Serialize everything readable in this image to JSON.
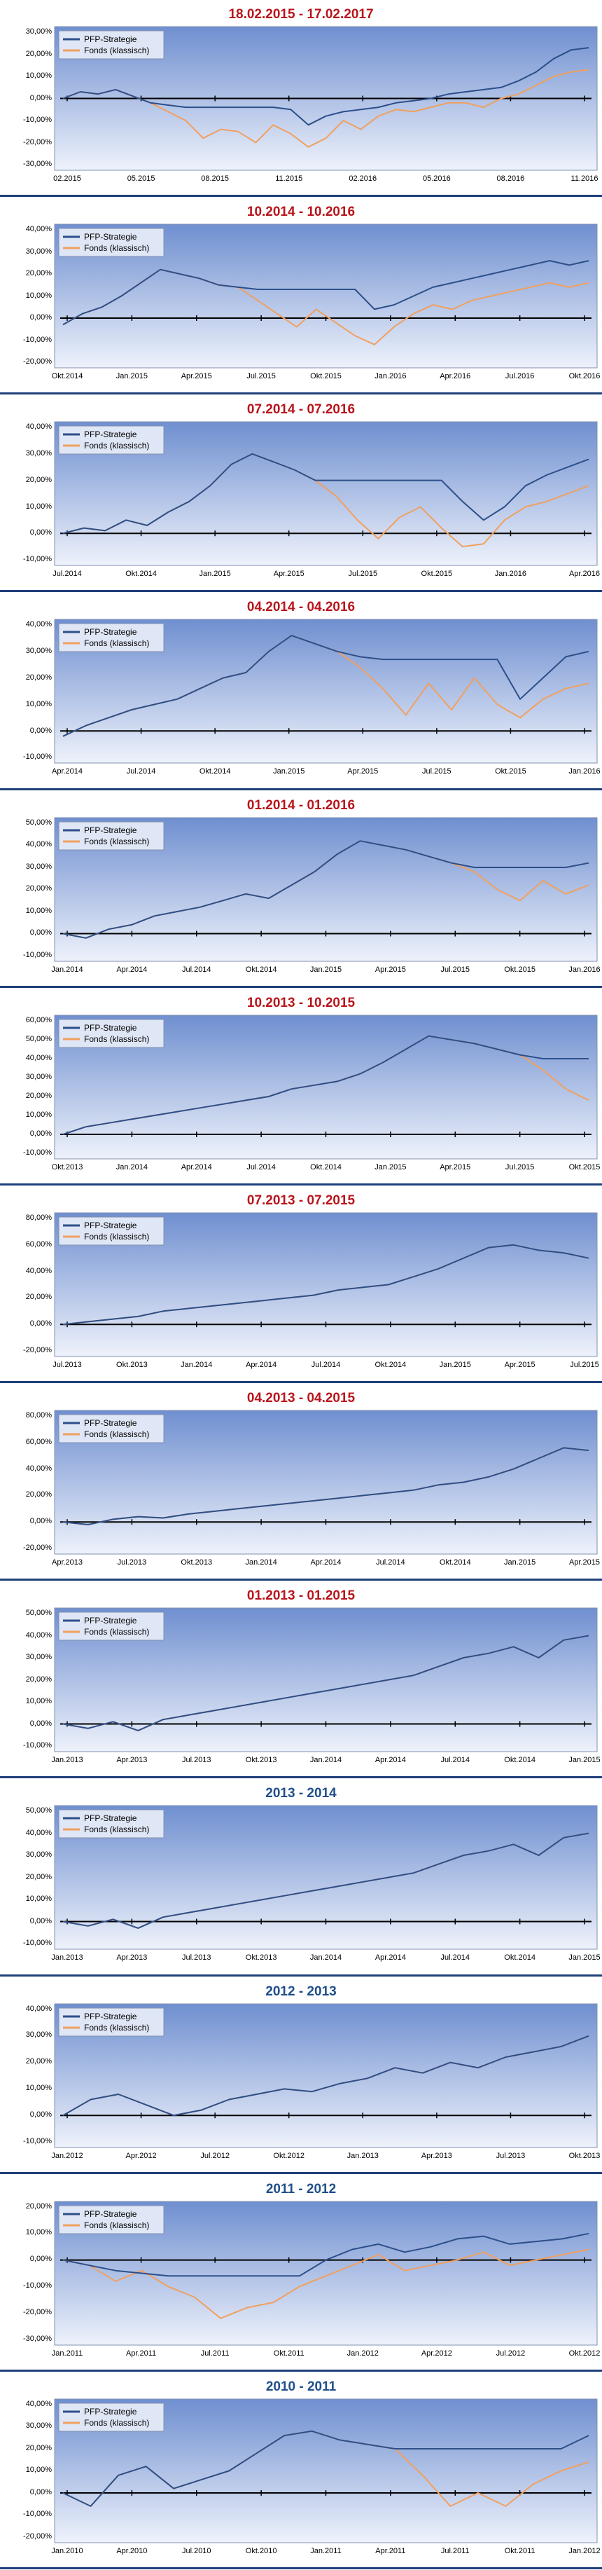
{
  "colors": {
    "strategy": "#2c4f8a",
    "fund": "#f0a060",
    "title_red": "#b8151c",
    "title_blue": "#1f4f8a"
  },
  "legend": {
    "strategy": "PFP-Strategie",
    "fund": "Fonds (klassisch)"
  },
  "chart_data": [
    {
      "type": "line",
      "title": "18.02.2015 - 17.02.2017",
      "title_color": "red",
      "ylim": [
        -30,
        30
      ],
      "yticks": [
        "30,00%",
        "20,00%",
        "10,00%",
        "0,00%",
        "-10,00%",
        "-20,00%",
        "-30,00%"
      ],
      "xticks": [
        "02.2015",
        "05.2015",
        "08.2015",
        "11.2015",
        "02.2016",
        "05.2016",
        "08.2016",
        "11.2016"
      ],
      "series": [
        {
          "name": "PFP-Strategie",
          "values": [
            0,
            3,
            2,
            4,
            1,
            -2,
            -3,
            -4,
            -4,
            -4,
            -4,
            -4,
            -4,
            -5,
            -12,
            -8,
            -6,
            -5,
            -4,
            -2,
            -1,
            0,
            2,
            3,
            4,
            5,
            8,
            12,
            18,
            22,
            23
          ]
        },
        {
          "name": "Fonds (klassisch)",
          "values": [
            0,
            3,
            2,
            4,
            1,
            -2,
            -6,
            -10,
            -18,
            -14,
            -15,
            -20,
            -12,
            -16,
            -22,
            -18,
            -10,
            -14,
            -8,
            -5,
            -6,
            -4,
            -2,
            -2,
            -4,
            0,
            2,
            6,
            10,
            12,
            13
          ]
        }
      ]
    },
    {
      "type": "line",
      "title": "10.2014 - 10.2016",
      "title_color": "red",
      "ylim": [
        -20,
        40
      ],
      "yticks": [
        "40,00%",
        "30,00%",
        "20,00%",
        "10,00%",
        "0,00%",
        "-10,00%",
        "-20,00%"
      ],
      "xticks": [
        "Okt.2014",
        "Jan.2015",
        "Apr.2015",
        "Jul.2015",
        "Okt.2015",
        "Jan.2016",
        "Apr.2016",
        "Jul.2016",
        "Okt.2016"
      ],
      "series": [
        {
          "name": "PFP-Strategie",
          "values": [
            -3,
            2,
            5,
            10,
            16,
            22,
            20,
            18,
            15,
            14,
            13,
            13,
            13,
            13,
            13,
            13,
            4,
            6,
            10,
            14,
            16,
            18,
            20,
            22,
            24,
            26,
            24,
            26
          ]
        },
        {
          "name": "Fonds (klassisch)",
          "values": [
            -3,
            2,
            5,
            10,
            16,
            22,
            20,
            18,
            15,
            14,
            8,
            2,
            -4,
            4,
            -2,
            -8,
            -12,
            -4,
            2,
            6,
            4,
            8,
            10,
            12,
            14,
            16,
            14,
            16
          ]
        }
      ]
    },
    {
      "type": "line",
      "title": "07.2014 - 07.2016",
      "title_color": "red",
      "ylim": [
        -10,
        40
      ],
      "yticks": [
        "40,00%",
        "30,00%",
        "20,00%",
        "10,00%",
        "0,00%",
        "-10,00%"
      ],
      "xticks": [
        "Jul.2014",
        "Okt.2014",
        "Jan.2015",
        "Apr.2015",
        "Jul.2015",
        "Okt.2015",
        "Jan.2016",
        "Apr.2016"
      ],
      "series": [
        {
          "name": "PFP-Strategie",
          "values": [
            0,
            2,
            1,
            5,
            3,
            8,
            12,
            18,
            26,
            30,
            27,
            24,
            20,
            20,
            20,
            20,
            20,
            20,
            20,
            12,
            5,
            10,
            18,
            22,
            25,
            28
          ]
        },
        {
          "name": "Fonds (klassisch)",
          "values": [
            0,
            2,
            1,
            5,
            3,
            8,
            12,
            18,
            26,
            30,
            27,
            24,
            20,
            14,
            5,
            -2,
            6,
            10,
            2,
            -5,
            -4,
            5,
            10,
            12,
            15,
            18
          ]
        }
      ]
    },
    {
      "type": "line",
      "title": "04.2014 - 04.2016",
      "title_color": "red",
      "ylim": [
        -10,
        40
      ],
      "yticks": [
        "40,00%",
        "30,00%",
        "20,00%",
        "10,00%",
        "0,00%",
        "-10,00%"
      ],
      "xticks": [
        "Apr.2014",
        "Jul.2014",
        "Okt.2014",
        "Jan.2015",
        "Apr.2015",
        "Jul.2015",
        "Okt.2015",
        "Jan.2016"
      ],
      "series": [
        {
          "name": "PFP-Strategie",
          "values": [
            -2,
            2,
            5,
            8,
            10,
            12,
            16,
            20,
            22,
            30,
            36,
            33,
            30,
            28,
            27,
            27,
            27,
            27,
            27,
            27,
            12,
            20,
            28,
            30
          ]
        },
        {
          "name": "Fonds (klassisch)",
          "values": [
            -2,
            2,
            5,
            8,
            10,
            12,
            16,
            20,
            22,
            30,
            36,
            33,
            30,
            24,
            16,
            6,
            18,
            8,
            20,
            10,
            5,
            12,
            16,
            18
          ]
        }
      ]
    },
    {
      "type": "line",
      "title": "01.2014 - 01.2016",
      "title_color": "red",
      "ylim": [
        -10,
        50
      ],
      "yticks": [
        "50,00%",
        "40,00%",
        "30,00%",
        "20,00%",
        "10,00%",
        "0,00%",
        "-10,00%"
      ],
      "xticks": [
        "Jan.2014",
        "Apr.2014",
        "Jul.2014",
        "Okt.2014",
        "Jan.2015",
        "Apr.2015",
        "Jul.2015",
        "Okt.2015",
        "Jan.2016"
      ],
      "series": [
        {
          "name": "PFP-Strategie",
          "values": [
            0,
            -2,
            2,
            4,
            8,
            10,
            12,
            15,
            18,
            16,
            22,
            28,
            36,
            42,
            40,
            38,
            35,
            32,
            30,
            30,
            30,
            30,
            30,
            32
          ]
        },
        {
          "name": "Fonds (klassisch)",
          "values": [
            0,
            -2,
            2,
            4,
            8,
            10,
            12,
            15,
            18,
            16,
            22,
            28,
            36,
            42,
            40,
            38,
            35,
            32,
            28,
            20,
            15,
            24,
            18,
            22
          ]
        }
      ]
    },
    {
      "type": "line",
      "title": "10.2013 - 10.2015",
      "title_color": "red",
      "ylim": [
        -10,
        60
      ],
      "yticks": [
        "60,00%",
        "50,00%",
        "40,00%",
        "30,00%",
        "20,00%",
        "10,00%",
        "0,00%",
        "-10,00%"
      ],
      "xticks": [
        "Okt.2013",
        "Jan.2014",
        "Apr.2014",
        "Jul.2014",
        "Okt.2014",
        "Jan.2015",
        "Apr.2015",
        "Jul.2015",
        "Okt.2015"
      ],
      "series": [
        {
          "name": "PFP-Strategie",
          "values": [
            0,
            4,
            6,
            8,
            10,
            12,
            14,
            16,
            18,
            20,
            24,
            26,
            28,
            32,
            38,
            45,
            52,
            50,
            48,
            45,
            42,
            40,
            40,
            40
          ]
        },
        {
          "name": "Fonds (klassisch)",
          "values": [
            0,
            4,
            6,
            8,
            10,
            12,
            14,
            16,
            18,
            20,
            24,
            26,
            28,
            32,
            38,
            45,
            52,
            50,
            48,
            45,
            42,
            34,
            24,
            18
          ]
        }
      ]
    },
    {
      "type": "line",
      "title": "07.2013 - 07.2015",
      "title_color": "red",
      "ylim": [
        -20,
        80
      ],
      "yticks": [
        "80,00%",
        "60,00%",
        "40,00%",
        "20,00%",
        "0,00%",
        "-20,00%"
      ],
      "xticks": [
        "Jul.2013",
        "Okt.2013",
        "Jan.2014",
        "Apr.2014",
        "Jul.2014",
        "Okt.2014",
        "Jan.2015",
        "Apr.2015",
        "Jul.2015"
      ],
      "series": [
        {
          "name": "PFP-Strategie",
          "values": [
            0,
            2,
            4,
            6,
            10,
            12,
            14,
            16,
            18,
            20,
            22,
            26,
            28,
            30,
            36,
            42,
            50,
            58,
            60,
            56,
            54,
            50
          ]
        },
        {
          "name": "Fonds (klassisch)",
          "values": [
            0,
            2,
            4,
            6,
            10,
            12,
            14,
            16,
            18,
            20,
            22,
            26,
            28,
            30,
            36,
            42,
            50,
            58,
            60,
            56,
            54,
            50
          ]
        }
      ]
    },
    {
      "type": "line",
      "title": "04.2013 - 04.2015",
      "title_color": "red",
      "ylim": [
        -20,
        80
      ],
      "yticks": [
        "80,00%",
        "60,00%",
        "40,00%",
        "20,00%",
        "0,00%",
        "-20,00%"
      ],
      "xticks": [
        "Apr.2013",
        "Jul.2013",
        "Okt.2013",
        "Jan.2014",
        "Apr.2014",
        "Jul.2014",
        "Okt.2014",
        "Jan.2015",
        "Apr.2015"
      ],
      "series": [
        {
          "name": "PFP-Strategie",
          "values": [
            0,
            -2,
            2,
            4,
            3,
            6,
            8,
            10,
            12,
            14,
            16,
            18,
            20,
            22,
            24,
            28,
            30,
            34,
            40,
            48,
            56,
            54
          ]
        },
        {
          "name": "Fonds (klassisch)",
          "values": [
            0,
            -2,
            2,
            4,
            3,
            6,
            8,
            10,
            12,
            14,
            16,
            18,
            20,
            22,
            24,
            28,
            30,
            34,
            40,
            48,
            56,
            54
          ]
        }
      ]
    },
    {
      "type": "line",
      "title": "01.2013 - 01.2015",
      "title_color": "red",
      "ylim": [
        -10,
        50
      ],
      "yticks": [
        "50,00%",
        "40,00%",
        "30,00%",
        "20,00%",
        "10,00%",
        "0,00%",
        "-10,00%"
      ],
      "xticks": [
        "Jan.2013",
        "Apr.2013",
        "Jul.2013",
        "Okt.2013",
        "Jan.2014",
        "Apr.2014",
        "Jul.2014",
        "Okt.2014",
        "Jan.2015"
      ],
      "series": [
        {
          "name": "PFP-Strategie",
          "values": [
            0,
            -2,
            1,
            -3,
            2,
            4,
            6,
            8,
            10,
            12,
            14,
            16,
            18,
            20,
            22,
            26,
            30,
            32,
            35,
            30,
            38,
            40
          ]
        },
        {
          "name": "Fonds (klassisch)",
          "values": [
            0,
            -2,
            1,
            -3,
            2,
            4,
            6,
            8,
            10,
            12,
            14,
            16,
            18,
            20,
            22,
            26,
            30,
            32,
            35,
            30,
            38,
            40
          ]
        }
      ]
    },
    {
      "type": "line",
      "title": "2013 - 2014",
      "title_color": "blue",
      "ylim": [
        -10,
        50
      ],
      "yticks": [
        "50,00%",
        "40,00%",
        "30,00%",
        "20,00%",
        "10,00%",
        "0,00%",
        "-10,00%"
      ],
      "xticks": [
        "Jan.2013",
        "Apr.2013",
        "Jul.2013",
        "Okt.2013",
        "Jan.2014",
        "Apr.2014",
        "Jul.2014",
        "Okt.2014",
        "Jan.2015"
      ],
      "series": [
        {
          "name": "PFP-Strategie",
          "values": [
            0,
            -2,
            1,
            -3,
            2,
            4,
            6,
            8,
            10,
            12,
            14,
            16,
            18,
            20,
            22,
            26,
            30,
            32,
            35,
            30,
            38,
            40
          ]
        },
        {
          "name": "Fonds (klassisch)",
          "values": [
            0,
            -2,
            1,
            -3,
            2,
            4,
            6,
            8,
            10,
            12,
            14,
            16,
            18,
            20,
            22,
            26,
            30,
            32,
            35,
            30,
            38,
            40
          ]
        }
      ]
    },
    {
      "type": "line",
      "title": "2012 - 2013",
      "title_color": "blue",
      "ylim": [
        -10,
        40
      ],
      "yticks": [
        "40,00%",
        "30,00%",
        "20,00%",
        "10,00%",
        "0,00%",
        "-10,00%"
      ],
      "xticks": [
        "Jan.2012",
        "Apr.2012",
        "Jul.2012",
        "Okt.2012",
        "Jan.2013",
        "Apr.2013",
        "Jul.2013",
        "Okt.2013"
      ],
      "series": [
        {
          "name": "PFP-Strategie",
          "values": [
            0,
            6,
            8,
            4,
            0,
            2,
            6,
            8,
            10,
            9,
            12,
            14,
            18,
            16,
            20,
            18,
            22,
            24,
            26,
            30
          ]
        },
        {
          "name": "Fonds (klassisch)",
          "values": [
            0,
            6,
            8,
            4,
            0,
            2,
            6,
            8,
            10,
            9,
            12,
            14,
            18,
            16,
            20,
            18,
            22,
            24,
            26,
            30
          ]
        }
      ]
    },
    {
      "type": "line",
      "title": "2011 - 2012",
      "title_color": "blue",
      "ylim": [
        -30,
        20
      ],
      "yticks": [
        "20,00%",
        "10,00%",
        "0,00%",
        "-10,00%",
        "-20,00%",
        "-30,00%"
      ],
      "xticks": [
        "Jan.2011",
        "Apr.2011",
        "Jul.2011",
        "Okt.2011",
        "Jan.2012",
        "Apr.2012",
        "Jul.2012",
        "Okt.2012"
      ],
      "series": [
        {
          "name": "PFP-Strategie",
          "values": [
            0,
            -2,
            -4,
            -5,
            -6,
            -6,
            -6,
            -6,
            -6,
            -6,
            0,
            4,
            6,
            3,
            5,
            8,
            9,
            6,
            7,
            8,
            10
          ]
        },
        {
          "name": "Fonds (klassisch)",
          "values": [
            0,
            -2,
            -8,
            -4,
            -10,
            -14,
            -22,
            -18,
            -16,
            -10,
            -6,
            -2,
            2,
            -4,
            -2,
            0,
            3,
            -2,
            0,
            2,
            4
          ]
        }
      ]
    },
    {
      "type": "line",
      "title": "2010 - 2011",
      "title_color": "blue",
      "ylim": [
        -20,
        40
      ],
      "yticks": [
        "40,00%",
        "30,00%",
        "20,00%",
        "10,00%",
        "0,00%",
        "-10,00%",
        "-20,00%"
      ],
      "xticks": [
        "Jan.2010",
        "Apr.2010",
        "Jul.2010",
        "Okt.2010",
        "Jan.2011",
        "Apr.2011",
        "Jul.2011",
        "Okt.2011",
        "Jan.2012"
      ],
      "series": [
        {
          "name": "PFP-Strategie",
          "values": [
            0,
            -6,
            8,
            12,
            2,
            6,
            10,
            18,
            26,
            28,
            24,
            22,
            20,
            20,
            20,
            20,
            20,
            20,
            20,
            26
          ]
        },
        {
          "name": "Fonds (klassisch)",
          "values": [
            0,
            -6,
            8,
            12,
            2,
            6,
            10,
            18,
            26,
            28,
            24,
            22,
            20,
            8,
            -6,
            0,
            -6,
            4,
            10,
            14
          ]
        }
      ]
    }
  ]
}
